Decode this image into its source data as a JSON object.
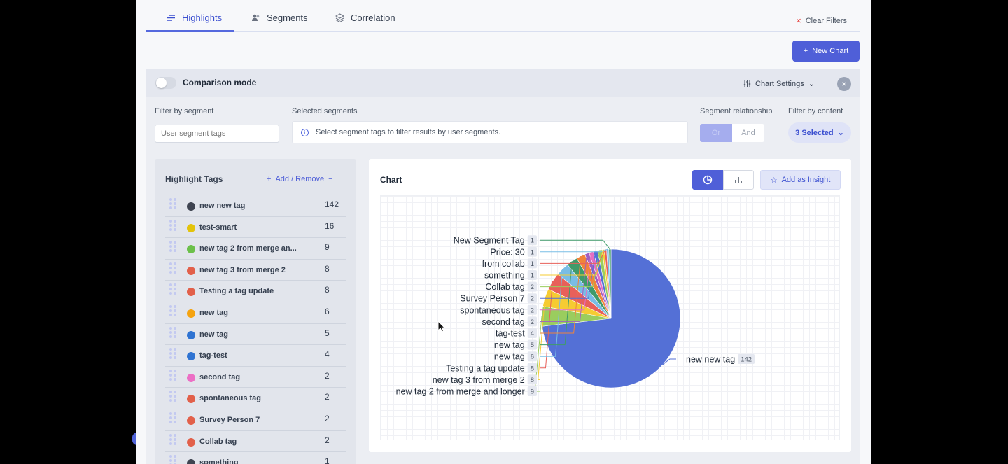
{
  "tabs": [
    {
      "label": "Highlights",
      "icon": "bars-icon",
      "active": true
    },
    {
      "label": "Segments",
      "icon": "users-icon",
      "active": false
    },
    {
      "label": "Correlation",
      "icon": "layers-icon",
      "active": false
    }
  ],
  "clear_filters": "Clear Filters",
  "new_chart": "New Chart",
  "comparison": {
    "label": "Comparison mode",
    "enabled": false
  },
  "chart_settings": "Chart Settings",
  "filters": {
    "segment_label": "Filter by segment",
    "segment_placeholder": "User segment tags",
    "selected_label": "Selected segments",
    "selected_hint": "Select segment tags to filter results by user segments.",
    "relationship_label": "Segment relationship",
    "relationship_or": "Or",
    "relationship_and": "And",
    "content_label": "Filter by content",
    "content_value": "3 Selected"
  },
  "highlight_tags": {
    "title": "Highlight Tags",
    "add_remove": "Add / Remove",
    "items": [
      {
        "name": "new new tag",
        "count": "142",
        "color": "#3f4451"
      },
      {
        "name": "test-smart",
        "count": "16",
        "color": "#e3c30a"
      },
      {
        "name": "new tag 2 from merge an...",
        "count": "9",
        "color": "#6cc04a"
      },
      {
        "name": "new tag 3 from merge 2",
        "count": "8",
        "color": "#e2604a"
      },
      {
        "name": "Testing a tag update",
        "count": "8",
        "color": "#e2604a"
      },
      {
        "name": "new tag",
        "count": "6",
        "color": "#f5a310"
      },
      {
        "name": "new tag",
        "count": "5",
        "color": "#2f73d2"
      },
      {
        "name": "tag-test",
        "count": "4",
        "color": "#2f73d2"
      },
      {
        "name": "second tag",
        "count": "2",
        "color": "#ec6fc5"
      },
      {
        "name": "spontaneous tag",
        "count": "2",
        "color": "#e2604a"
      },
      {
        "name": "Survey Person 7",
        "count": "2",
        "color": "#e2604a"
      },
      {
        "name": "Collab tag",
        "count": "2",
        "color": "#e2604a"
      },
      {
        "name": "something",
        "count": "1",
        "color": "#3f4451"
      }
    ]
  },
  "chart": {
    "title": "Chart",
    "add_insight": "Add as Insight"
  },
  "chart_data": {
    "type": "pie",
    "slices": [
      {
        "label": "new new tag",
        "value": 142,
        "color": "#5470d6"
      },
      {
        "label": "new tag 2 from merge and longer",
        "value": 9,
        "color": "#9acd5e"
      },
      {
        "label": "new tag 3 from merge 2",
        "value": 8,
        "color": "#f6cb32"
      },
      {
        "label": "Testing a tag update",
        "value": 8,
        "color": "#e8605a"
      },
      {
        "label": "new tag",
        "value": 6,
        "color": "#79bde6"
      },
      {
        "label": "new tag",
        "value": 5,
        "color": "#3f9b6a"
      },
      {
        "label": "tag-test",
        "value": 4,
        "color": "#f0843a"
      },
      {
        "label": "second tag",
        "value": 2,
        "color": "#a05fc0"
      },
      {
        "label": "spontaneous tag",
        "value": 2,
        "color": "#e66fc2"
      },
      {
        "label": "Survey Person 7",
        "value": 2,
        "color": "#5470d6"
      },
      {
        "label": "Collab tag",
        "value": 2,
        "color": "#9acd5e"
      },
      {
        "label": "something",
        "value": 1,
        "color": "#f6cb32"
      },
      {
        "label": "from collab",
        "value": 1,
        "color": "#e8605a"
      },
      {
        "label": "Price: 30",
        "value": 1,
        "color": "#79bde6"
      },
      {
        "label": "New Segment Tag",
        "value": 1,
        "color": "#3f9b6a"
      }
    ]
  }
}
